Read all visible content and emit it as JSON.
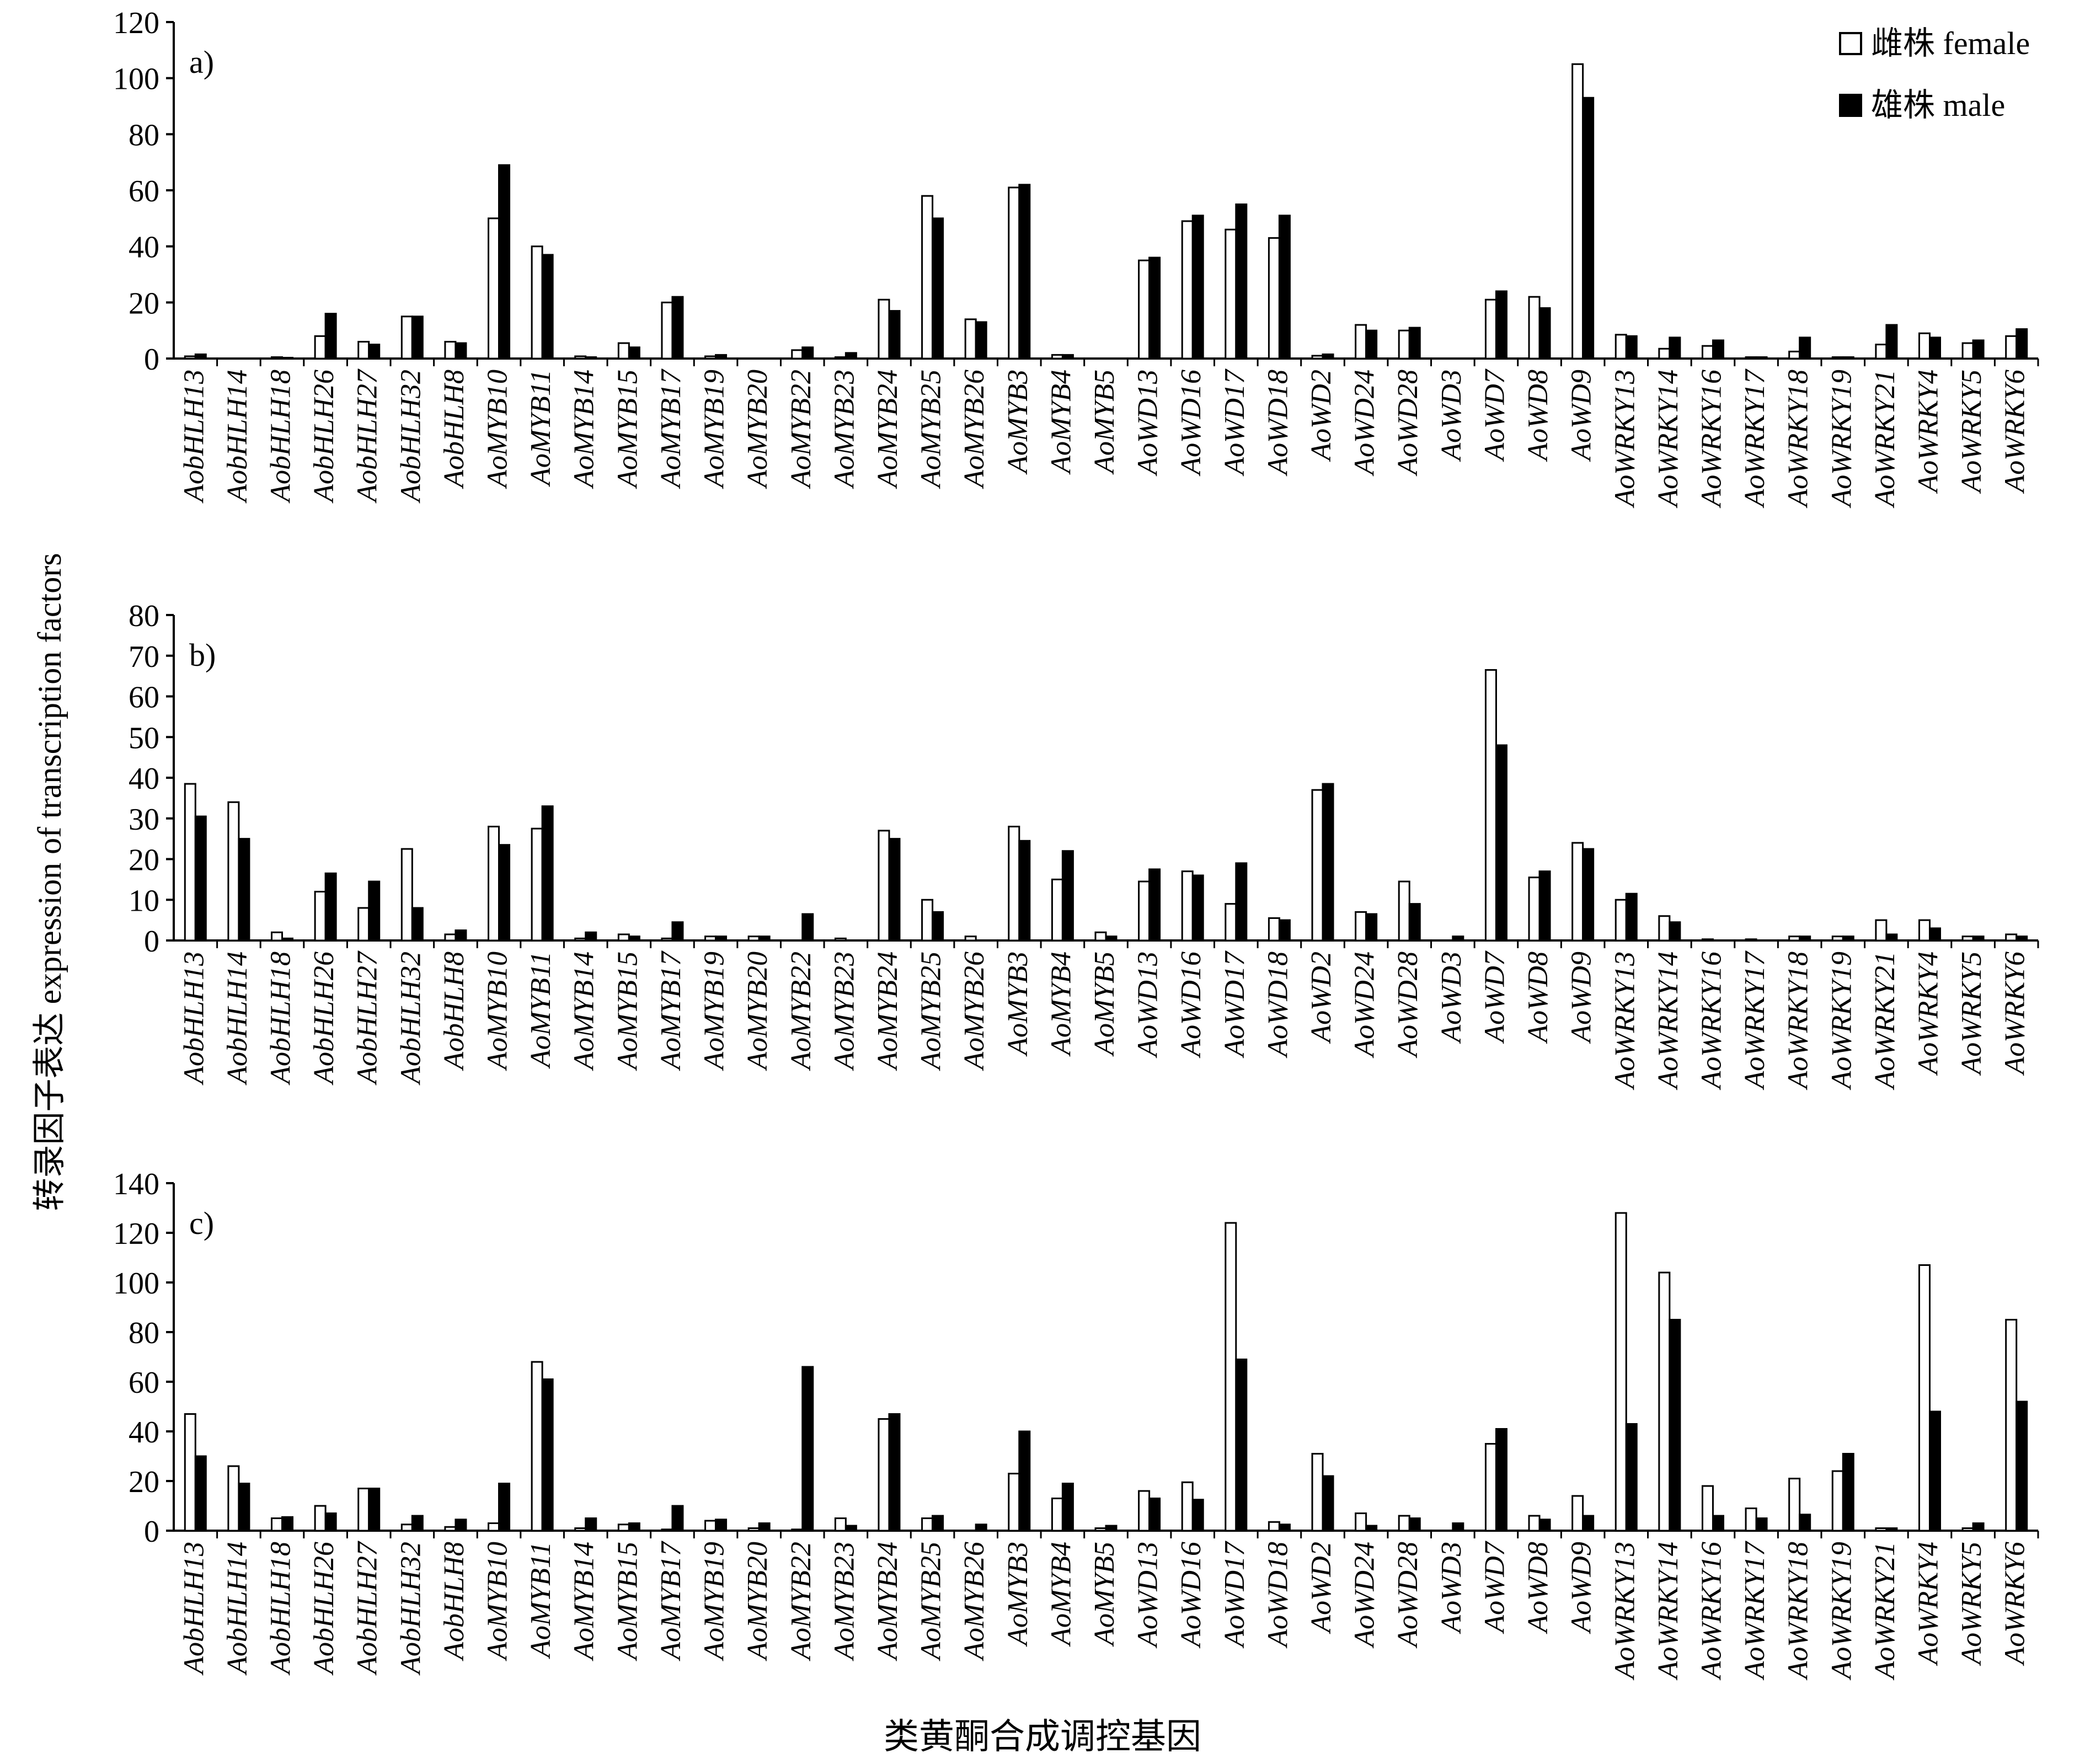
{
  "figure": {
    "y_axis_label": "转录因子表达  expression of transcription factors",
    "x_axis_label": "类黄酮合成调控基因"
  },
  "legend": {
    "female_label": "雌株 female",
    "male_label": "雄株 male"
  },
  "colors": {
    "female": "#ffffff",
    "male": "#000000",
    "axis": "#000000"
  },
  "chart_data": [
    {
      "type": "bar",
      "panel_label": "a)",
      "xlabel": "类黄酮合成调控基因",
      "ylabel": "转录因子表达  expression of transcription factors",
      "ylim": [
        0,
        120
      ],
      "yticks": [
        0,
        20,
        40,
        60,
        80,
        100,
        120
      ],
      "categories": [
        "AobHLH13",
        "AobHLH14",
        "AobHLH18",
        "AobHLH26",
        "AobHLH27",
        "AobHLH32",
        "AobHLH8",
        "AoMYB10",
        "AoMYB11",
        "AoMYB14",
        "AoMYB15",
        "AoMYB17",
        "AoMYB19",
        "AoMYB20",
        "AoMYB22",
        "AoMYB23",
        "AoMYB24",
        "AoMYB25",
        "AoMYB26",
        "AoMYB3",
        "AoMYB4",
        "AoMYB5",
        "AoWD13",
        "AoWD16",
        "AoWD17",
        "AoWD18",
        "AoWD2",
        "AoWD24",
        "AoWD28",
        "AoWD3",
        "AoWD7",
        "AoWD8",
        "AoWD9",
        "AoWRKY13",
        "AoWRKY14",
        "AoWRKY16",
        "AoWRKY17",
        "AoWRKY18",
        "AoWRKY19",
        "AoWRKY21",
        "AoWRKY4",
        "AoWRKY5",
        "AoWRKY6"
      ],
      "series": [
        {
          "name": "雌株 female",
          "values": [
            0.8,
            0,
            0.5,
            8,
            6,
            15,
            6,
            50,
            40,
            0.8,
            5.5,
            20,
            0.8,
            0,
            3,
            0.5,
            21,
            58,
            14,
            61,
            1.3,
            0,
            35,
            49,
            46,
            43,
            1,
            12,
            10,
            0,
            21,
            22,
            105,
            8.5,
            3.5,
            4.5,
            0.5,
            2.5,
            0.5,
            5,
            9,
            5.5,
            8
          ]
        },
        {
          "name": "雄株 male",
          "values": [
            1.5,
            0,
            0.3,
            16,
            5,
            15,
            5.5,
            69,
            37,
            0.5,
            4,
            22,
            1.3,
            0,
            4,
            2,
            17,
            50,
            13,
            62,
            1.3,
            0,
            36,
            51,
            55,
            51,
            1.5,
            10,
            11,
            0,
            24,
            18,
            93,
            8,
            7.5,
            6.5,
            0.5,
            7.5,
            0.5,
            12,
            7.5,
            6.5,
            10.5
          ]
        }
      ]
    },
    {
      "type": "bar",
      "panel_label": "b)",
      "xlabel": "类黄酮合成调控基因",
      "ylabel": "转录因子表达  expression of transcription factors",
      "ylim": [
        0,
        80
      ],
      "yticks": [
        0,
        10,
        20,
        30,
        40,
        50,
        60,
        70,
        80
      ],
      "categories": [
        "AobHLH13",
        "AobHLH14",
        "AobHLH18",
        "AobHLH26",
        "AobHLH27",
        "AobHLH32",
        "AobHLH8",
        "AoMYB10",
        "AoMYB11",
        "AoMYB14",
        "AoMYB15",
        "AoMYB17",
        "AoMYB19",
        "AoMYB20",
        "AoMYB22",
        "AoMYB23",
        "AoMYB24",
        "AoMYB25",
        "AoMYB26",
        "AoMYB3",
        "AoMYB4",
        "AoMYB5",
        "AoWD13",
        "AoWD16",
        "AoWD17",
        "AoWD18",
        "AoWD2",
        "AoWD24",
        "AoWD28",
        "AoWD3",
        "AoWD7",
        "AoWD8",
        "AoWD9",
        "AoWRKY13",
        "AoWRKY14",
        "AoWRKY16",
        "AoWRKY17",
        "AoWRKY18",
        "AoWRKY19",
        "AoWRKY21",
        "AoWRKY4",
        "AoWRKY5",
        "AoWRKY6"
      ],
      "series": [
        {
          "name": "雌株 female",
          "values": [
            38.5,
            34,
            2,
            12,
            8,
            22.5,
            1.5,
            28,
            27.5,
            0.5,
            1.5,
            0.5,
            1,
            1,
            0,
            0.5,
            27,
            10,
            1,
            28,
            15,
            2,
            14.5,
            17,
            9,
            5.5,
            37,
            7,
            14.5,
            0,
            66.5,
            15.5,
            24,
            10,
            6,
            0.3,
            0.3,
            1,
            1,
            5,
            5,
            1,
            1.5
          ]
        },
        {
          "name": "雄株 male",
          "values": [
            30.5,
            25,
            0.5,
            16.5,
            14.5,
            8,
            2.5,
            23.5,
            33,
            2,
            1,
            4.5,
            1,
            1,
            6.5,
            0,
            25,
            7,
            0,
            24.5,
            22,
            1,
            17.5,
            16,
            19,
            5,
            38.5,
            6.5,
            9,
            1,
            48,
            17,
            22.5,
            11.5,
            4.5,
            0,
            0,
            1,
            1,
            1.5,
            3,
            1,
            1
          ]
        }
      ]
    },
    {
      "type": "bar",
      "panel_label": "c)",
      "xlabel": "类黄酮合成调控基因",
      "ylabel": "转录因子表达  expression of transcription factors",
      "ylim": [
        0,
        140
      ],
      "yticks": [
        0,
        20,
        40,
        60,
        80,
        100,
        120,
        140
      ],
      "categories": [
        "AobHLH13",
        "AobHLH14",
        "AobHLH18",
        "AobHLH26",
        "AobHLH27",
        "AobHLH32",
        "AobHLH8",
        "AoMYB10",
        "AoMYB11",
        "AoMYB14",
        "AoMYB15",
        "AoMYB17",
        "AoMYB19",
        "AoMYB20",
        "AoMYB22",
        "AoMYB23",
        "AoMYB24",
        "AoMYB25",
        "AoMYB26",
        "AoMYB3",
        "AoMYB4",
        "AoMYB5",
        "AoWD13",
        "AoWD16",
        "AoWD17",
        "AoWD18",
        "AoWD2",
        "AoWD24",
        "AoWD28",
        "AoWD3",
        "AoWD7",
        "AoWD8",
        "AoWD9",
        "AoWRKY13",
        "AoWRKY14",
        "AoWRKY16",
        "AoWRKY17",
        "AoWRKY18",
        "AoWRKY19",
        "AoWRKY21",
        "AoWRKY4",
        "AoWRKY5",
        "AoWRKY6"
      ],
      "series": [
        {
          "name": "雌株 female",
          "values": [
            47,
            26,
            5,
            10,
            17,
            2.5,
            1.5,
            3,
            68,
            1,
            2.5,
            0.5,
            4,
            1,
            0.5,
            5,
            45,
            5,
            0,
            23,
            13,
            1,
            16,
            19.5,
            124,
            3.5,
            31,
            7,
            6,
            0,
            35,
            6,
            14,
            128,
            104,
            18,
            9,
            21,
            24,
            1,
            107,
            1,
            85
          ]
        },
        {
          "name": "雄株 male",
          "values": [
            30,
            19,
            5.5,
            7,
            17,
            6,
            4.5,
            19,
            61,
            5,
            3,
            10,
            4.5,
            3,
            66,
            2,
            47,
            6,
            2.5,
            40,
            19,
            2,
            13,
            12.5,
            69,
            2.5,
            22,
            2,
            5,
            3,
            41,
            4.5,
            6,
            43,
            85,
            6,
            5,
            6.5,
            31,
            1,
            48,
            3,
            52
          ]
        }
      ]
    }
  ]
}
